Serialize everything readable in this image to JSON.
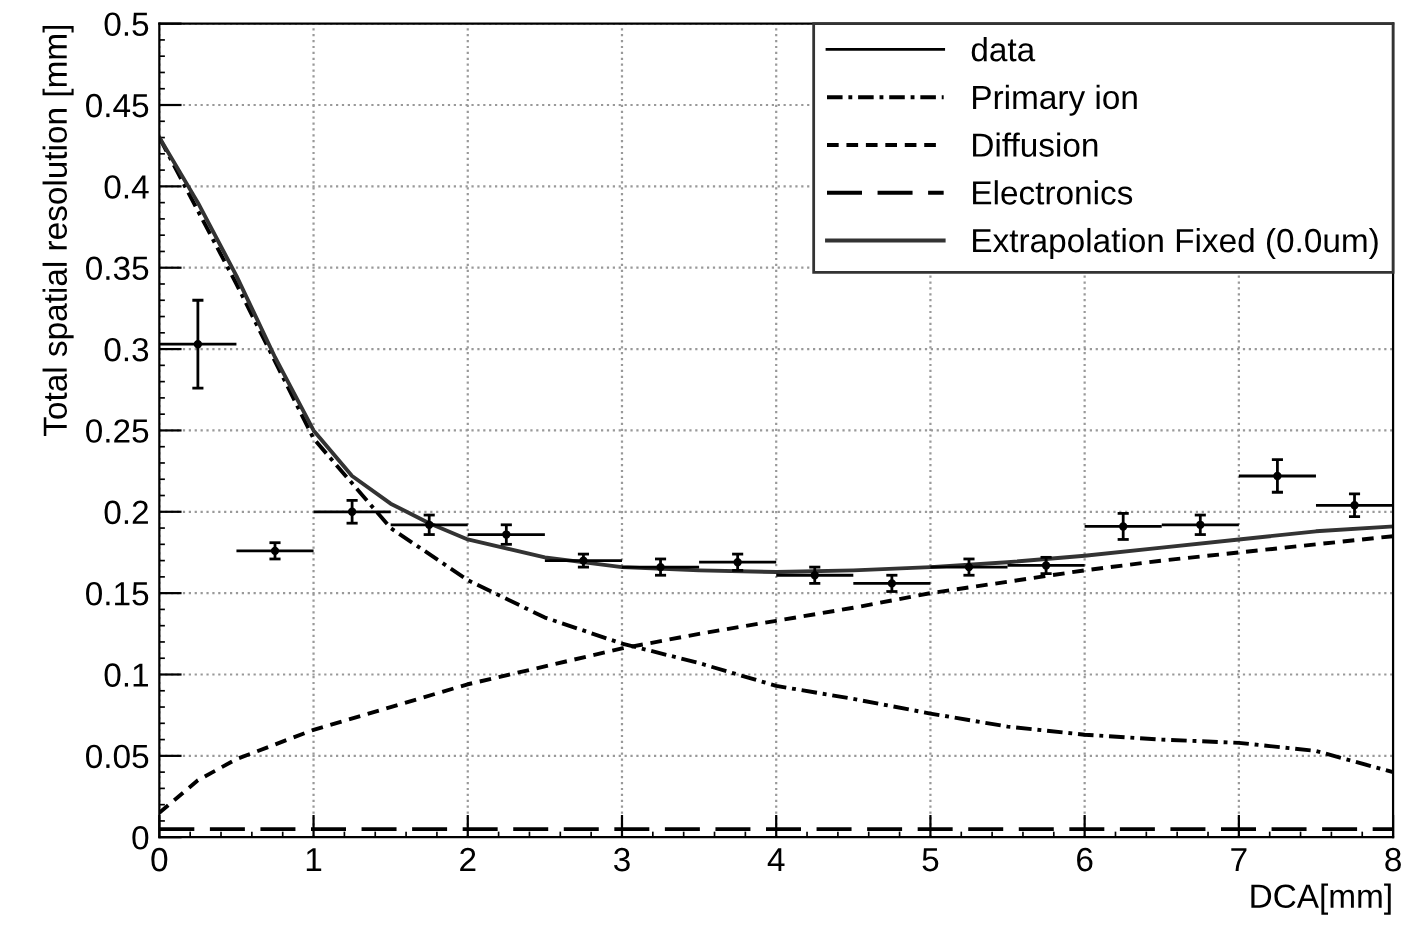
{
  "chart_data": {
    "type": "line",
    "xlabel": "DCA[mm]",
    "ylabel": "Total spatial resolution [mm]",
    "xlim": [
      0,
      8
    ],
    "xticks": [
      0,
      1,
      2,
      3,
      4,
      5,
      6,
      7,
      8
    ],
    "ylim": [
      0,
      0.5
    ],
    "yticks": [
      0,
      0.05,
      0.1,
      0.15,
      0.2,
      0.25,
      0.3,
      0.35,
      0.4,
      0.45,
      0.5
    ],
    "grid": true,
    "legend": "top right",
    "series": [
      {
        "name": "data",
        "type": "scatter",
        "color": "#000000",
        "marker": "circle",
        "x": [
          0.25,
          0.75,
          1.25,
          1.75,
          2.25,
          2.75,
          3.25,
          3.75,
          4.25,
          4.75,
          5.25,
          5.75,
          6.25,
          6.75,
          7.25,
          7.75
        ],
        "values": [
          0.303,
          0.176,
          0.2,
          0.192,
          0.186,
          0.17,
          0.166,
          0.169,
          0.161,
          0.156,
          0.166,
          0.167,
          0.191,
          0.192,
          0.222,
          0.204
        ],
        "errors": [
          0.027,
          0.005,
          0.007,
          0.006,
          0.006,
          0.004,
          0.005,
          0.005,
          0.005,
          0.005,
          0.005,
          0.005,
          0.008,
          0.006,
          0.01,
          0.007
        ],
        "xerrors": [
          0.25,
          0.25,
          0.25,
          0.25,
          0.25,
          0.25,
          0.25,
          0.25,
          0.25,
          0.25,
          0.25,
          0.25,
          0.25,
          0.25,
          0.25,
          0.25
        ]
      },
      {
        "name": "Primary ion",
        "color": "#000000",
        "line_style": "dashdot",
        "x": [
          0,
          0.5,
          1,
          1.5,
          2,
          2.5,
          3,
          3.5,
          4,
          4.5,
          5,
          5.5,
          6,
          6.5,
          7,
          7.5,
          8
        ],
        "values": [
          0.43,
          0.34,
          0.245,
          0.19,
          0.158,
          0.135,
          0.119,
          0.107,
          0.093,
          0.085,
          0.076,
          0.068,
          0.063,
          0.06,
          0.058,
          0.053,
          0.04
        ]
      },
      {
        "name": "Diffusion",
        "color": "#000000",
        "line_style": "dashed",
        "x": [
          0,
          0.25,
          0.5,
          1,
          1.5,
          2,
          2.5,
          3,
          3.5,
          4,
          4.5,
          5,
          5.5,
          6,
          6.5,
          7,
          7.5,
          8
        ],
        "values": [
          0.015,
          0.035,
          0.048,
          0.066,
          0.08,
          0.094,
          0.105,
          0.116,
          0.125,
          0.133,
          0.141,
          0.15,
          0.157,
          0.164,
          0.17,
          0.175,
          0.18,
          0.185
        ]
      },
      {
        "name": "Electronics",
        "color": "#000000",
        "line_style": "longdash",
        "x": [
          0,
          8
        ],
        "values": [
          0.005,
          0.005
        ]
      },
      {
        "name": "Extrapolation Fixed (0.0um)",
        "color": "#333333",
        "line_style": "solid",
        "x": [
          0,
          0.25,
          0.5,
          0.75,
          1,
          1.25,
          1.5,
          1.75,
          2,
          2.5,
          3,
          3.5,
          4,
          4.5,
          5,
          5.5,
          6,
          6.5,
          7,
          7.5,
          8
        ],
        "values": [
          0.43,
          0.39,
          0.345,
          0.295,
          0.25,
          0.222,
          0.205,
          0.193,
          0.183,
          0.172,
          0.166,
          0.164,
          0.163,
          0.164,
          0.166,
          0.169,
          0.173,
          0.178,
          0.183,
          0.188,
          0.191
        ]
      }
    ]
  }
}
